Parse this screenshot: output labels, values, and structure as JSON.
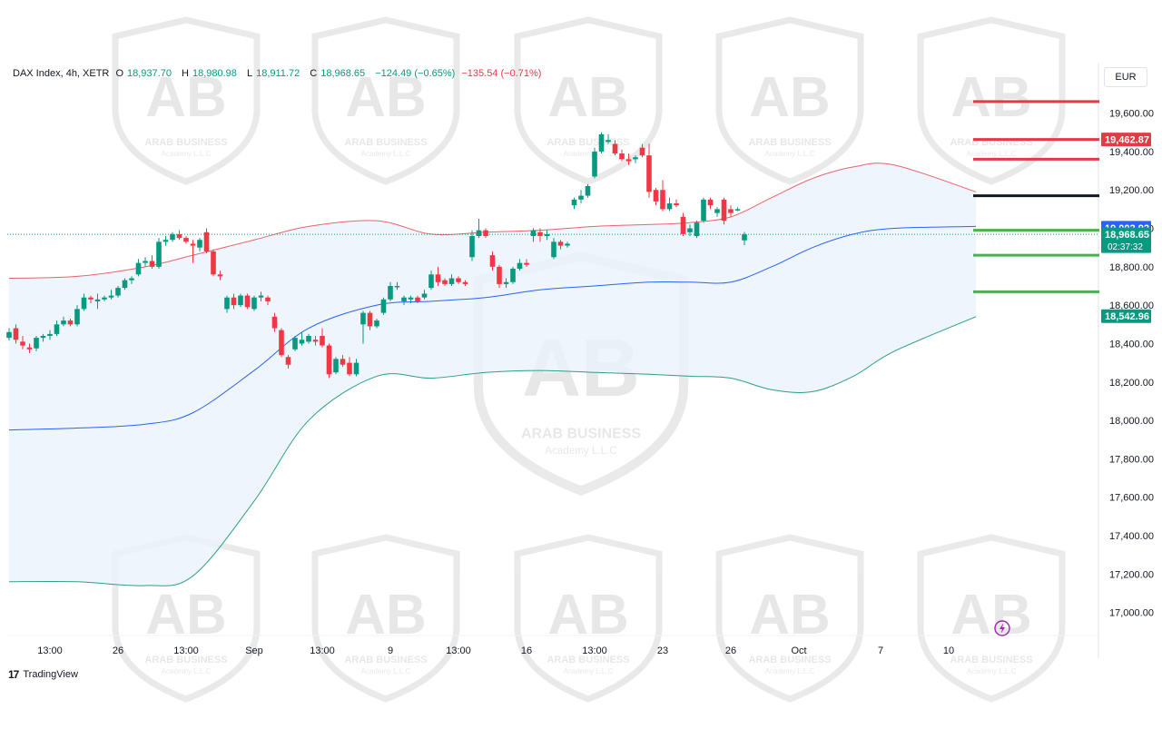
{
  "legend": {
    "symbol": "DAX Index, 4h, XETR",
    "o_label": "O",
    "o_value": "18,937.70",
    "h_label": "H",
    "h_value": "18,980.98",
    "l_label": "L",
    "l_value": "18,911.72",
    "c_label": "C",
    "c_value": "18,968.65",
    "change": "−124.49 (−0.65%)",
    "change2": "−135.54 (−0.71%)"
  },
  "currency": "EUR",
  "brand": {
    "logo": "17",
    "name": "TradingView"
  },
  "watermark": {
    "line1": "ARAB BUSINESS",
    "line2": "Academy L.L.C",
    "logo": "AB"
  },
  "colors": {
    "up": "#089981",
    "down": "#f23645",
    "upper_band": "#e5656b",
    "lower_band": "#2f9e8a",
    "basis": "#2962ff",
    "fill": "#eaf3fb",
    "resistance": "#e53a44",
    "support": "#4caf50",
    "pivot": "#131722"
  },
  "chart_data": {
    "type": "candlestick",
    "price_axis": {
      "ylim": [
        16880,
        19740
      ],
      "ticks": [
        17000,
        17200,
        17400,
        17600,
        17800,
        18000,
        18200,
        18400,
        18600,
        18800,
        19000,
        19200,
        19400,
        19600
      ],
      "tick_labels": [
        "17,000.00",
        "17,200.00",
        "17,400.00",
        "17,600.00",
        "17,800.00",
        "18,000.00",
        "18,200.00",
        "18,400.00",
        "18,600.00",
        "18,800.00",
        "19,000.00",
        "19,200.00",
        "19,400.00",
        "19,600.00"
      ]
    },
    "time_axis": {
      "labels": [
        "13:00",
        "26",
        "13:00",
        "Sep",
        "13:00",
        "9",
        "13:00",
        "16",
        "13:00",
        "23",
        "26",
        "Oct",
        "7",
        "10"
      ],
      "label_bar_index": [
        6,
        16,
        26,
        36,
        46,
        56,
        66,
        76,
        86,
        96,
        106,
        116,
        128,
        138
      ]
    },
    "candles": [
      {
        "o": 18430,
        "h": 18480,
        "l": 18415,
        "c": 18460
      },
      {
        "o": 18480,
        "h": 18500,
        "l": 18400,
        "c": 18420
      },
      {
        "o": 18410,
        "h": 18440,
        "l": 18370,
        "c": 18390
      },
      {
        "o": 18380,
        "h": 18400,
        "l": 18350,
        "c": 18370
      },
      {
        "o": 18375,
        "h": 18440,
        "l": 18360,
        "c": 18430
      },
      {
        "o": 18430,
        "h": 18450,
        "l": 18410,
        "c": 18440
      },
      {
        "o": 18440,
        "h": 18470,
        "l": 18420,
        "c": 18450
      },
      {
        "o": 18450,
        "h": 18520,
        "l": 18440,
        "c": 18500
      },
      {
        "o": 18500,
        "h": 18540,
        "l": 18490,
        "c": 18520
      },
      {
        "o": 18520,
        "h": 18530,
        "l": 18490,
        "c": 18500
      },
      {
        "o": 18500,
        "h": 18600,
        "l": 18490,
        "c": 18580
      },
      {
        "o": 18580,
        "h": 18660,
        "l": 18570,
        "c": 18640
      },
      {
        "o": 18640,
        "h": 18650,
        "l": 18610,
        "c": 18630
      },
      {
        "o": 18620,
        "h": 18660,
        "l": 18580,
        "c": 18630
      },
      {
        "o": 18630,
        "h": 18650,
        "l": 18620,
        "c": 18640
      },
      {
        "o": 18640,
        "h": 18680,
        "l": 18630,
        "c": 18650
      },
      {
        "o": 18650,
        "h": 18700,
        "l": 18640,
        "c": 18690
      },
      {
        "o": 18690,
        "h": 18740,
        "l": 18680,
        "c": 18730
      },
      {
        "o": 18730,
        "h": 18750,
        "l": 18710,
        "c": 18740
      },
      {
        "o": 18760,
        "h": 18840,
        "l": 18750,
        "c": 18820
      },
      {
        "o": 18820,
        "h": 18850,
        "l": 18800,
        "c": 18830
      },
      {
        "o": 18830,
        "h": 18860,
        "l": 18790,
        "c": 18800
      },
      {
        "o": 18800,
        "h": 18950,
        "l": 18790,
        "c": 18930
      },
      {
        "o": 18930,
        "h": 18960,
        "l": 18910,
        "c": 18940
      },
      {
        "o": 18940,
        "h": 18980,
        "l": 18930,
        "c": 18970
      },
      {
        "o": 18970,
        "h": 18990,
        "l": 18940,
        "c": 18950
      },
      {
        "o": 18950,
        "h": 18960,
        "l": 18920,
        "c": 18930
      },
      {
        "o": 18920,
        "h": 18940,
        "l": 18820,
        "c": 18910
      },
      {
        "o": 18900,
        "h": 18950,
        "l": 18880,
        "c": 18940
      },
      {
        "o": 18980,
        "h": 19000,
        "l": 18870,
        "c": 18880
      },
      {
        "o": 18880,
        "h": 18890,
        "l": 18750,
        "c": 18760
      },
      {
        "o": 18760,
        "h": 18780,
        "l": 18730,
        "c": 18750
      },
      {
        "o": 18580,
        "h": 18650,
        "l": 18560,
        "c": 18640
      },
      {
        "o": 18640,
        "h": 18660,
        "l": 18580,
        "c": 18600
      },
      {
        "o": 18600,
        "h": 18660,
        "l": 18590,
        "c": 18650
      },
      {
        "o": 18650,
        "h": 18660,
        "l": 18580,
        "c": 18590
      },
      {
        "o": 18580,
        "h": 18650,
        "l": 18570,
        "c": 18640
      },
      {
        "o": 18640,
        "h": 18670,
        "l": 18620,
        "c": 18650
      },
      {
        "o": 18640,
        "h": 18650,
        "l": 18600,
        "c": 18620
      },
      {
        "o": 18540,
        "h": 18560,
        "l": 18460,
        "c": 18480
      },
      {
        "o": 18470,
        "h": 18480,
        "l": 18330,
        "c": 18340
      },
      {
        "o": 18330,
        "h": 18340,
        "l": 18270,
        "c": 18290
      },
      {
        "o": 18370,
        "h": 18440,
        "l": 18360,
        "c": 18430
      },
      {
        "o": 18400,
        "h": 18460,
        "l": 18390,
        "c": 18420
      },
      {
        "o": 18410,
        "h": 18450,
        "l": 18400,
        "c": 18440
      },
      {
        "o": 18420,
        "h": 18440,
        "l": 18390,
        "c": 18410
      },
      {
        "o": 18440,
        "h": 18480,
        "l": 18380,
        "c": 18390
      },
      {
        "o": 18390,
        "h": 18400,
        "l": 18220,
        "c": 18240
      },
      {
        "o": 18250,
        "h": 18330,
        "l": 18240,
        "c": 18320
      },
      {
        "o": 18320,
        "h": 18340,
        "l": 18280,
        "c": 18290
      },
      {
        "o": 18300,
        "h": 18330,
        "l": 18230,
        "c": 18240
      },
      {
        "o": 18240,
        "h": 18320,
        "l": 18230,
        "c": 18300
      },
      {
        "o": 18500,
        "h": 18570,
        "l": 18400,
        "c": 18560
      },
      {
        "o": 18560,
        "h": 18570,
        "l": 18470,
        "c": 18490
      },
      {
        "o": 18490,
        "h": 18530,
        "l": 18480,
        "c": 18520
      },
      {
        "o": 18560,
        "h": 18640,
        "l": 18550,
        "c": 18630
      },
      {
        "o": 18630,
        "h": 18720,
        "l": 18620,
        "c": 18700
      },
      {
        "o": 18700,
        "h": 18720,
        "l": 18680,
        "c": 18700
      },
      {
        "o": 18620,
        "h": 18650,
        "l": 18600,
        "c": 18640
      },
      {
        "o": 18630,
        "h": 18650,
        "l": 18610,
        "c": 18640
      },
      {
        "o": 18640,
        "h": 18650,
        "l": 18610,
        "c": 18620
      },
      {
        "o": 18640,
        "h": 18680,
        "l": 18630,
        "c": 18660
      },
      {
        "o": 18690,
        "h": 18780,
        "l": 18680,
        "c": 18760
      },
      {
        "o": 18760,
        "h": 18800,
        "l": 18700,
        "c": 18720
      },
      {
        "o": 18730,
        "h": 18740,
        "l": 18700,
        "c": 18710
      },
      {
        "o": 18710,
        "h": 18760,
        "l": 18700,
        "c": 18740
      },
      {
        "o": 18740,
        "h": 18750,
        "l": 18710,
        "c": 18720
      },
      {
        "o": 18720,
        "h": 18730,
        "l": 18700,
        "c": 18710
      },
      {
        "o": 18850,
        "h": 18990,
        "l": 18830,
        "c": 18960
      },
      {
        "o": 18960,
        "h": 19050,
        "l": 18950,
        "c": 18990
      },
      {
        "o": 18990,
        "h": 19000,
        "l": 18950,
        "c": 18960
      },
      {
        "o": 18860,
        "h": 18880,
        "l": 18780,
        "c": 18800
      },
      {
        "o": 18800,
        "h": 18810,
        "l": 18690,
        "c": 18710
      },
      {
        "o": 18710,
        "h": 18740,
        "l": 18690,
        "c": 18720
      },
      {
        "o": 18720,
        "h": 18800,
        "l": 18710,
        "c": 18790
      },
      {
        "o": 18790,
        "h": 18840,
        "l": 18780,
        "c": 18820
      },
      {
        "o": 18820,
        "h": 18840,
        "l": 18800,
        "c": 18810
      },
      {
        "o": 18960,
        "h": 19000,
        "l": 18930,
        "c": 18990
      },
      {
        "o": 18980,
        "h": 19000,
        "l": 18930,
        "c": 18960
      },
      {
        "o": 18960,
        "h": 18990,
        "l": 18940,
        "c": 18970
      },
      {
        "o": 18850,
        "h": 18950,
        "l": 18840,
        "c": 18930
      },
      {
        "o": 18930,
        "h": 18940,
        "l": 18890,
        "c": 18910
      },
      {
        "o": 18910,
        "h": 18930,
        "l": 18900,
        "c": 18920
      },
      {
        "o": 19120,
        "h": 19160,
        "l": 19100,
        "c": 19150
      },
      {
        "o": 19150,
        "h": 19200,
        "l": 19130,
        "c": 19170
      },
      {
        "o": 19170,
        "h": 19230,
        "l": 19160,
        "c": 19220
      },
      {
        "o": 19270,
        "h": 19420,
        "l": 19260,
        "c": 19400
      },
      {
        "o": 19400,
        "h": 19500,
        "l": 19390,
        "c": 19490
      },
      {
        "o": 19450,
        "h": 19490,
        "l": 19440,
        "c": 19460
      },
      {
        "o": 19440,
        "h": 19460,
        "l": 19380,
        "c": 19390
      },
      {
        "o": 19390,
        "h": 19410,
        "l": 19350,
        "c": 19360
      },
      {
        "o": 19360,
        "h": 19390,
        "l": 19330,
        "c": 19350
      },
      {
        "o": 19360,
        "h": 19380,
        "l": 19340,
        "c": 19370
      },
      {
        "o": 19420,
        "h": 19440,
        "l": 19370,
        "c": 19380
      },
      {
        "o": 19380,
        "h": 19440,
        "l": 19160,
        "c": 19190
      },
      {
        "o": 19200,
        "h": 19210,
        "l": 19120,
        "c": 19140
      },
      {
        "o": 19200,
        "h": 19250,
        "l": 19090,
        "c": 19100
      },
      {
        "o": 19100,
        "h": 19160,
        "l": 19090,
        "c": 19130
      },
      {
        "o": 19130,
        "h": 19150,
        "l": 19110,
        "c": 19120
      },
      {
        "o": 19060,
        "h": 19080,
        "l": 18960,
        "c": 18970
      },
      {
        "o": 18980,
        "h": 19020,
        "l": 18960,
        "c": 19000
      },
      {
        "o": 18960,
        "h": 19040,
        "l": 18950,
        "c": 19030
      },
      {
        "o": 19040,
        "h": 19160,
        "l": 19030,
        "c": 19150
      },
      {
        "o": 19150,
        "h": 19160,
        "l": 19100,
        "c": 19120
      },
      {
        "o": 19080,
        "h": 19110,
        "l": 19060,
        "c": 19100
      },
      {
        "o": 19150,
        "h": 19160,
        "l": 19020,
        "c": 19040
      },
      {
        "o": 19100,
        "h": 19120,
        "l": 19060,
        "c": 19080
      },
      {
        "o": 19100,
        "h": 19110,
        "l": 19090,
        "c": 19100
      },
      {
        "o": 18937.7,
        "h": 18980.98,
        "l": 18911.72,
        "c": 18968.65
      }
    ],
    "bollinger": {
      "upper": [
        18740,
        18750,
        18800,
        18860,
        18940,
        19010,
        19040,
        18970,
        18980,
        18990,
        19010,
        19020,
        19030,
        19060,
        19160,
        19260,
        19320,
        19330,
        19190
      ],
      "basis": [
        17950,
        17960,
        17980,
        18040,
        18260,
        18480,
        18600,
        18620,
        18640,
        18680,
        18700,
        18720,
        18720,
        18720,
        18800,
        18900,
        18970,
        19000,
        19010
      ],
      "lower": [
        17160,
        17160,
        17140,
        17190,
        17580,
        18000,
        18230,
        18220,
        18250,
        18260,
        18250,
        18240,
        18230,
        18220,
        18160,
        18150,
        18230,
        18360,
        18540
      ],
      "anchor_bar_index": [
        0,
        10,
        20,
        27,
        36,
        44,
        54,
        62,
        70,
        78,
        86,
        94,
        100,
        106,
        112,
        118,
        124,
        130,
        142
      ]
    },
    "levels": {
      "resistance": [
        19660,
        19462.87,
        19360
      ],
      "pivot": [
        19170
      ],
      "support": [
        18990,
        18860,
        18670
      ]
    },
    "price_labels": [
      {
        "value": 19462.87,
        "text": "19,462.87",
        "color": "#e53a44"
      },
      {
        "value": 19002.92,
        "text": "19,002.92",
        "color": "#2962ff"
      },
      {
        "value": 18968.65,
        "text": "18,968.65",
        "sub": "02:37:32",
        "color": "#089981"
      },
      {
        "value": 18542.96,
        "text": "18,542.96",
        "color": "#089981"
      }
    ]
  }
}
